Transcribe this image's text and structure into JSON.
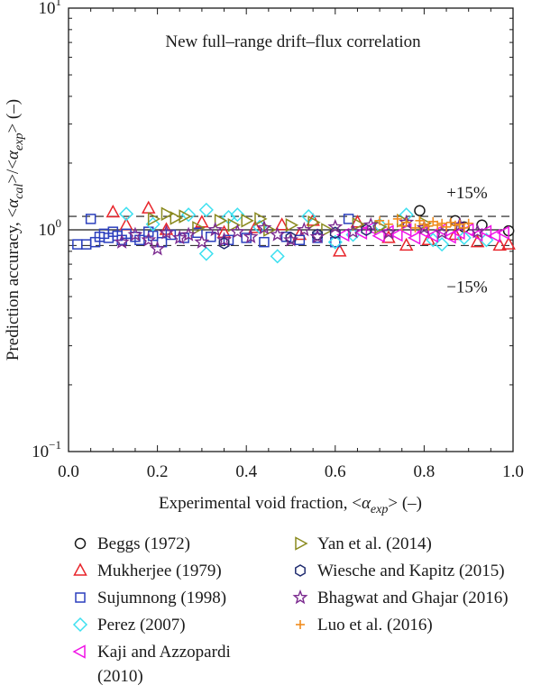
{
  "chart_data": {
    "type": "scatter",
    "title": "New full–range drift–flux correlation",
    "xlabel": "Experimental void fraction, <αexp> (–)",
    "ylabel": "Prediction accuracy, <αcal>/<αexp> (–)",
    "xlim": [
      0.0,
      1.0
    ],
    "ylim": [
      0.1,
      10
    ],
    "yscale": "log",
    "x_ticks": [
      "0.0",
      "0.2",
      "0.4",
      "0.6",
      "0.8",
      "1.0"
    ],
    "y_ticks": [
      {
        "base": "10",
        "exp": "1"
      },
      {
        "base": "10",
        "exp": "0"
      },
      {
        "base": "10",
        "exp": "−1"
      }
    ],
    "reference_lines": [
      {
        "y": 1.0,
        "style": "solid"
      },
      {
        "y": 1.15,
        "style": "dashed",
        "label": "+15%"
      },
      {
        "y": 0.85,
        "style": "dashed",
        "label": "−15%"
      }
    ],
    "grid": false,
    "legend_position": "below",
    "series": [
      {
        "name": "Beggs (1972)",
        "color": "#1a1a1a",
        "marker": "circle",
        "points": [
          [
            0.79,
            1.22
          ],
          [
            0.87,
            1.1
          ],
          [
            0.89,
            1.03
          ],
          [
            0.93,
            1.05
          ],
          [
            0.99,
            0.99
          ]
        ]
      },
      {
        "name": "Mukherjee (1979)",
        "color": "#e8252b",
        "marker": "triangle-up",
        "points": [
          [
            0.1,
            1.2
          ],
          [
            0.13,
            1.05
          ],
          [
            0.18,
            1.25
          ],
          [
            0.22,
            1.0
          ],
          [
            0.3,
            1.08
          ],
          [
            0.35,
            0.97
          ],
          [
            0.42,
            1.02
          ],
          [
            0.48,
            1.05
          ],
          [
            0.52,
            0.95
          ],
          [
            0.55,
            1.1
          ],
          [
            0.61,
            0.8
          ],
          [
            0.65,
            1.08
          ],
          [
            0.72,
            0.92
          ],
          [
            0.76,
            0.85
          ],
          [
            0.81,
            0.9
          ],
          [
            0.87,
            0.95
          ],
          [
            0.92,
            0.88
          ],
          [
            0.97,
            0.85
          ],
          [
            0.99,
            0.86
          ]
        ]
      },
      {
        "name": "Sujumnong (1998)",
        "color": "#2b3fbd",
        "marker": "square",
        "points": [
          [
            0.02,
            0.86
          ],
          [
            0.04,
            0.86
          ],
          [
            0.05,
            1.12
          ],
          [
            0.06,
            0.88
          ],
          [
            0.07,
            0.93
          ],
          [
            0.08,
            0.96
          ],
          [
            0.09,
            0.92
          ],
          [
            0.1,
            0.98
          ],
          [
            0.11,
            0.94
          ],
          [
            0.12,
            0.9
          ],
          [
            0.13,
            0.96
          ],
          [
            0.15,
            0.93
          ],
          [
            0.16,
            0.9
          ],
          [
            0.18,
            0.98
          ],
          [
            0.19,
            0.94
          ],
          [
            0.21,
            0.88
          ],
          [
            0.23,
            0.95
          ],
          [
            0.26,
            0.92
          ],
          [
            0.29,
            0.97
          ],
          [
            0.32,
            0.93
          ],
          [
            0.36,
            0.9
          ],
          [
            0.4,
            0.92
          ],
          [
            0.44,
            0.88
          ],
          [
            0.49,
            0.93
          ],
          [
            0.52,
            0.9
          ],
          [
            0.56,
            0.92
          ],
          [
            0.6,
            0.88
          ],
          [
            0.63,
            1.12
          ]
        ]
      },
      {
        "name": "Perez (2007)",
        "color": "#3ee0f0",
        "marker": "diamond",
        "points": [
          [
            0.13,
            1.18
          ],
          [
            0.19,
            1.06
          ],
          [
            0.27,
            1.17
          ],
          [
            0.31,
            1.23
          ],
          [
            0.31,
            0.78
          ],
          [
            0.36,
            1.14
          ],
          [
            0.38,
            1.17
          ],
          [
            0.43,
            1.03
          ],
          [
            0.47,
            0.76
          ],
          [
            0.54,
            1.15
          ],
          [
            0.6,
            0.88
          ],
          [
            0.64,
            0.95
          ],
          [
            0.7,
            1.05
          ],
          [
            0.76,
            1.17
          ],
          [
            0.82,
            0.9
          ],
          [
            0.84,
            0.86
          ],
          [
            0.89,
            0.92
          ],
          [
            0.94,
            0.9
          ]
        ]
      },
      {
        "name": "Kaji and Azzopardi\n(2010)",
        "color": "#f012e6",
        "marker": "triangle-left",
        "points": [
          [
            0.62,
            0.95
          ],
          [
            0.66,
            0.97
          ],
          [
            0.68,
            1.02
          ],
          [
            0.7,
            0.94
          ],
          [
            0.72,
            0.98
          ],
          [
            0.74,
            0.95
          ],
          [
            0.76,
            1.0
          ],
          [
            0.78,
            0.92
          ],
          [
            0.8,
            0.98
          ],
          [
            0.82,
            0.94
          ],
          [
            0.84,
            1.0
          ],
          [
            0.86,
            0.93
          ],
          [
            0.88,
            0.97
          ],
          [
            0.9,
            1.0
          ],
          [
            0.92,
            0.95
          ],
          [
            0.94,
            0.98
          ],
          [
            0.96,
            0.94
          ],
          [
            0.98,
            0.97
          ]
        ]
      },
      {
        "name": "Yan et al. (2014)",
        "color": "#8a8a1e",
        "marker": "triangle-right",
        "points": [
          [
            0.19,
            1.12
          ],
          [
            0.22,
            1.18
          ],
          [
            0.24,
            1.13
          ],
          [
            0.26,
            1.15
          ],
          [
            0.29,
            1.02
          ],
          [
            0.34,
            1.1
          ],
          [
            0.37,
            1.05
          ],
          [
            0.4,
            1.1
          ],
          [
            0.43,
            1.12
          ],
          [
            0.45,
            1.0
          ],
          [
            0.5,
            1.05
          ],
          [
            0.55,
            1.08
          ],
          [
            0.58,
            1.0
          ],
          [
            0.65,
            1.06
          ],
          [
            0.7,
            1.03
          ],
          [
            0.75,
            1.1
          ],
          [
            0.8,
            1.07
          ]
        ]
      },
      {
        "name": "Wiesche and Kapitz (2015)",
        "color": "#1e2a6e",
        "marker": "hexagon",
        "points": [
          [
            0.35,
            0.87
          ],
          [
            0.5,
            0.92
          ],
          [
            0.56,
            0.95
          ],
          [
            0.6,
            0.97
          ],
          [
            0.67,
            1.0
          ]
        ]
      },
      {
        "name": "Bhagwat and Ghajar (2016)",
        "color": "#7b2a8f",
        "marker": "star",
        "points": [
          [
            0.12,
            0.88
          ],
          [
            0.15,
            0.95
          ],
          [
            0.18,
            0.9
          ],
          [
            0.2,
            0.82
          ],
          [
            0.22,
            0.97
          ],
          [
            0.25,
            0.92
          ],
          [
            0.27,
            0.95
          ],
          [
            0.3,
            0.88
          ],
          [
            0.33,
            1.0
          ],
          [
            0.35,
            0.9
          ],
          [
            0.38,
            0.98
          ],
          [
            0.41,
            0.93
          ],
          [
            0.44,
            1.02
          ],
          [
            0.47,
            0.95
          ],
          [
            0.5,
            0.9
          ],
          [
            0.53,
            1.0
          ],
          [
            0.56,
            0.93
          ],
          [
            0.6,
            1.03
          ],
          [
            0.64,
            0.98
          ],
          [
            0.68,
            1.05
          ],
          [
            0.72,
            0.97
          ],
          [
            0.76,
            1.08
          ],
          [
            0.8,
            1.02
          ],
          [
            0.84,
            0.97
          ],
          [
            0.88,
            1.05
          ],
          [
            0.92,
            0.98
          ]
        ]
      },
      {
        "name": "Luo et al. (2016)",
        "color": "#f08c1e",
        "marker": "plus",
        "points": [
          [
            0.7,
            1.1
          ],
          [
            0.72,
            1.06
          ],
          [
            0.74,
            1.12
          ],
          [
            0.75,
            1.04
          ],
          [
            0.76,
            1.08
          ],
          [
            0.78,
            1.02
          ],
          [
            0.79,
            1.1
          ],
          [
            0.8,
            1.06
          ],
          [
            0.81,
            1.04
          ],
          [
            0.82,
            1.09
          ],
          [
            0.83,
            1.05
          ],
          [
            0.84,
            1.07
          ],
          [
            0.85,
            1.03
          ],
          [
            0.86,
            1.08
          ],
          [
            0.87,
            1.05
          ],
          [
            0.88,
            1.06
          ],
          [
            0.89,
            1.02
          ],
          [
            0.9,
            1.07
          ]
        ]
      }
    ]
  }
}
